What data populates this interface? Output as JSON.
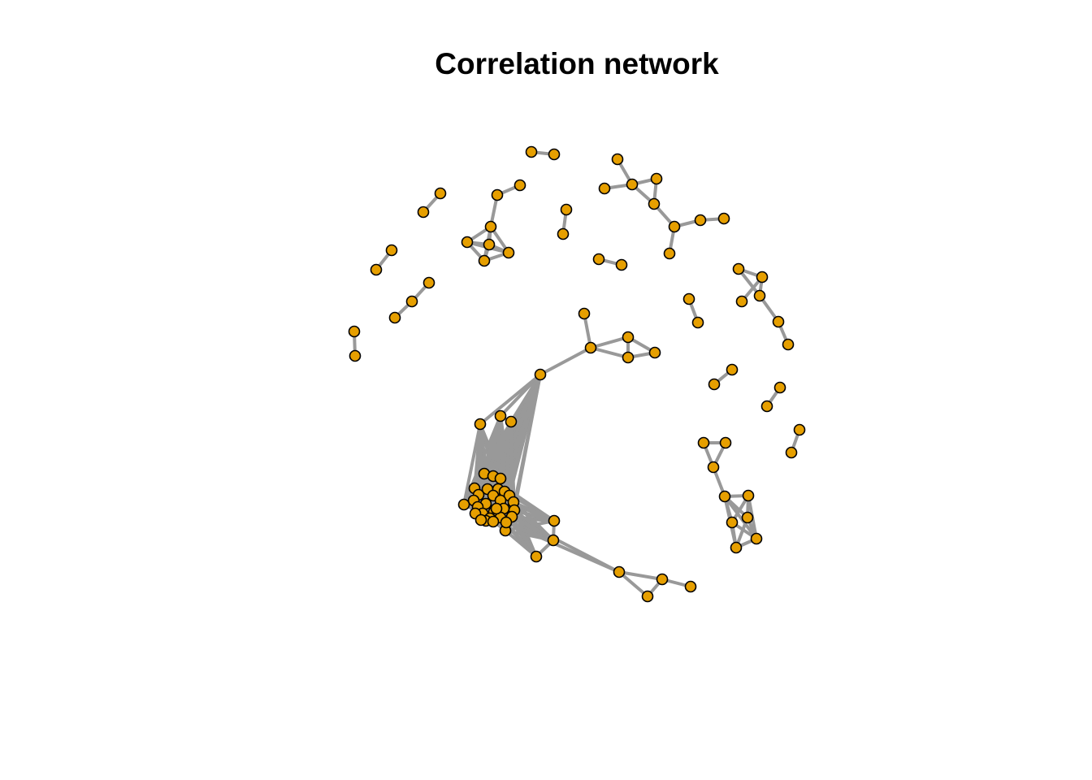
{
  "chart_data": {
    "type": "network",
    "title": "Correlation network",
    "colors": {
      "node_fill": "#E69F00",
      "node_stroke": "#000000",
      "edge": "#999999"
    }
  }
}
